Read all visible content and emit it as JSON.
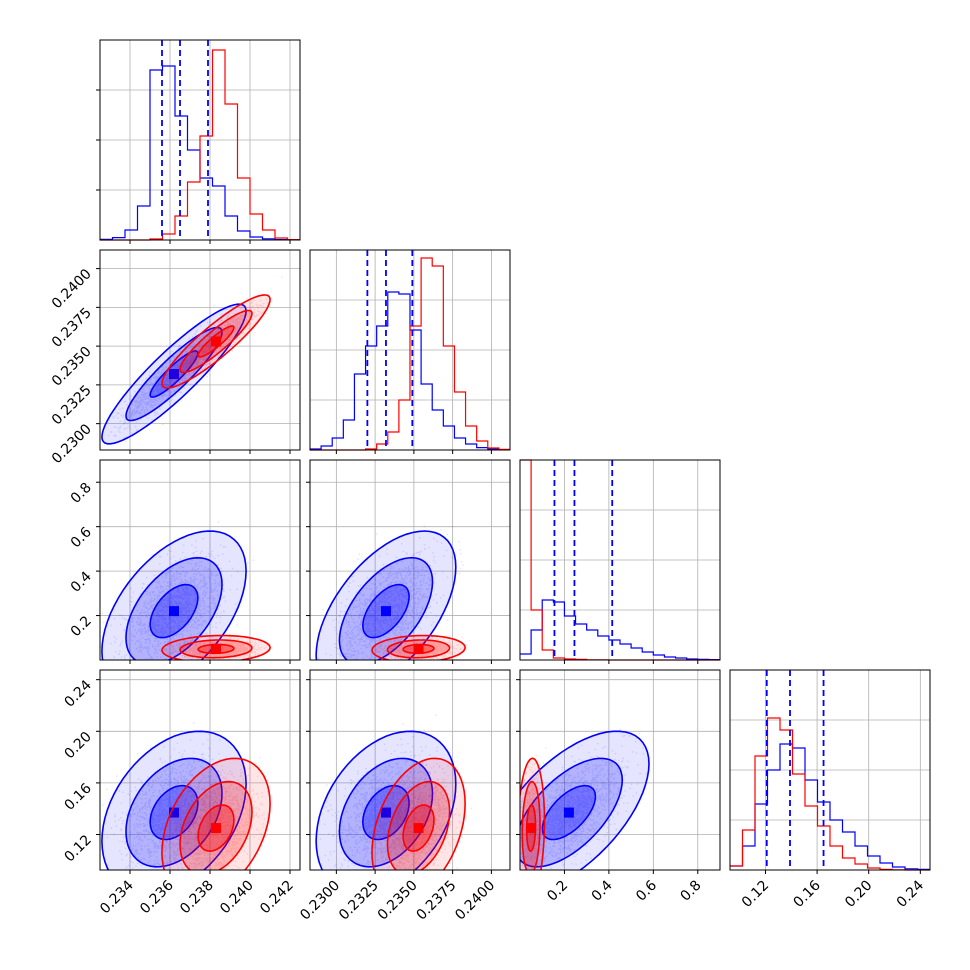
{
  "chart_data": {
    "type": "corner",
    "title": "",
    "grid": true,
    "colors": {
      "series_a": "#0000ff",
      "series_b": "#ff0000",
      "quantile_lines": "#0000ff"
    },
    "parameters": [
      {
        "range": [
          0.2325,
          0.2425
        ],
        "ticks": [
          0.234,
          0.236,
          0.238,
          0.24,
          0.242
        ],
        "tick_labels": [
          "0.234",
          "0.236",
          "0.238",
          "0.240",
          "0.242"
        ]
      },
      {
        "range": [
          0.2283,
          0.2412
        ],
        "ticks": [
          0.23,
          0.2325,
          0.235,
          0.2375,
          0.24
        ],
        "tick_labels": [
          "0.2300",
          "0.2325",
          "0.2350",
          "0.2375",
          "0.2400"
        ]
      },
      {
        "range": [
          0.0,
          0.9
        ],
        "ticks": [
          0.2,
          0.4,
          0.6,
          0.8
        ],
        "tick_labels": [
          "0.2",
          "0.4",
          "0.6",
          "0.8"
        ]
      },
      {
        "range": [
          0.0925,
          0.2475
        ],
        "ticks": [
          0.12,
          0.16,
          0.2,
          0.24
        ],
        "tick_labels": [
          "0.12",
          "0.16",
          "0.20",
          "0.24"
        ]
      }
    ],
    "quantiles": [
      [
        0.2356,
        0.2365,
        0.2379
      ],
      [
        0.232,
        0.2332,
        0.2349
      ],
      [
        0.155,
        0.245,
        0.415
      ],
      [
        0.121,
        0.139,
        0.165
      ]
    ],
    "series": [
      {
        "color": "#0000ff",
        "means": [
          0.2362,
          0.2332,
          0.22,
          0.137
        ],
        "sds": [
          0.0012,
          0.0015,
          0.12,
          0.021
        ],
        "histograms": [
          [
            0.003,
            0.012,
            0.05,
            0.17,
            0.85,
            0.87,
            0.62,
            0.45,
            0.31,
            0.27,
            0.12,
            0.045,
            0.015,
            0.006,
            0.002,
            0.001
          ],
          [
            0.005,
            0.02,
            0.06,
            0.15,
            0.38,
            0.52,
            0.62,
            0.79,
            0.78,
            0.6,
            0.33,
            0.2,
            0.12,
            0.06,
            0.03,
            0.012,
            0.005,
            0.002
          ],
          [
            0.03,
            0.15,
            0.3,
            0.29,
            0.22,
            0.18,
            0.15,
            0.12,
            0.1,
            0.08,
            0.06,
            0.04,
            0.025,
            0.015,
            0.01,
            0.005,
            0.003,
            0.002
          ],
          [
            0.02,
            0.12,
            0.33,
            0.5,
            0.63,
            0.61,
            0.45,
            0.34,
            0.25,
            0.19,
            0.12,
            0.07,
            0.035,
            0.015,
            0.006,
            0.003
          ]
        ]
      },
      {
        "color": "#ff0000",
        "means": [
          0.2383,
          0.2353,
          0.05,
          0.125
        ],
        "sds": [
          0.0009,
          0.001,
          0.02,
          0.018
        ],
        "histograms": [
          [
            0,
            0,
            0,
            0,
            0.005,
            0.03,
            0.12,
            0.29,
            0.52,
            0.95,
            0.68,
            0.31,
            0.13,
            0.05,
            0.01,
            0.002
          ],
          [
            0,
            0,
            0,
            0,
            0,
            0.005,
            0.03,
            0.09,
            0.25,
            0.62,
            0.96,
            0.92,
            0.52,
            0.29,
            0.12,
            0.045,
            0.01,
            0.003
          ],
          [
            1.0,
            0.25,
            0.05,
            0.01,
            0.005,
            0.003,
            0.001,
            0.001,
            0,
            0,
            0,
            0,
            0,
            0,
            0,
            0,
            0,
            0
          ],
          [
            0.02,
            0.2,
            0.57,
            0.76,
            0.7,
            0.48,
            0.32,
            0.22,
            0.12,
            0.06,
            0.03,
            0.01,
            0.003,
            0.001,
            0,
            0
          ]
        ]
      }
    ],
    "correlations": {
      "0-1": 0.9,
      "0-2": 0.5,
      "1-2": 0.55,
      "0-3": 0.35,
      "1-3": 0.35,
      "2-3": 0.6
    }
  }
}
